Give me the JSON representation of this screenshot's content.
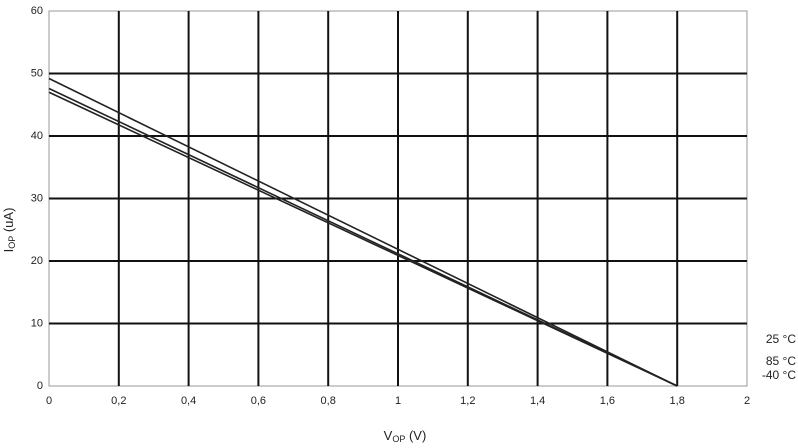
{
  "chart_data": {
    "type": "line",
    "ylabel": {
      "main": "I",
      "sub": "OP",
      "unit": " (uA)"
    },
    "xlabel": {
      "main": "V",
      "sub": "OP",
      "unit": " (V)"
    },
    "x": [
      0,
      1.8
    ],
    "series": [
      {
        "name": "25 °C",
        "color": "#222222",
        "values": [
          49.2,
          0
        ]
      },
      {
        "name": "85 °C",
        "color": "#222222",
        "values": [
          47.6,
          0
        ]
      },
      {
        "name": "-40 °C",
        "color": "#222222",
        "values": [
          47.0,
          0
        ]
      }
    ],
    "xlim": [
      0,
      2
    ],
    "ylim": [
      0,
      60
    ],
    "xticks": [
      0,
      {
        "value": 0.2,
        "label": "0,2"
      },
      {
        "value": 0.4,
        "label": "0,4"
      },
      {
        "value": 0.6,
        "label": "0,6"
      },
      {
        "value": 0.8,
        "label": "0,8"
      },
      1,
      {
        "value": 1.2,
        "label": "1,2"
      },
      {
        "value": 1.4,
        "label": "1,4"
      },
      {
        "value": 1.6,
        "label": "1,6"
      },
      {
        "value": 1.8,
        "label": "1,8"
      },
      2
    ],
    "yticks": [
      0,
      10,
      20,
      30,
      40,
      50,
      60
    ],
    "grid": true
  }
}
